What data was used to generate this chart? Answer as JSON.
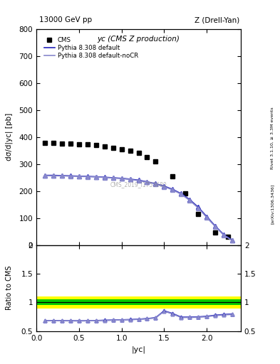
{
  "title_left": "13000 GeV pp",
  "title_right": "Z (Drell-Yan)",
  "plot_title": "yᴄ (CMS Z production)",
  "ylabel_main": "dσ/d|yᴄ| [pb]",
  "ylabel_ratio": "Ratio to CMS",
  "xlabel": "|yᴄ|",
  "right_label_top": "Rivet 3.1.10, ≥ 3.3M events",
  "right_label_bot": "[arXiv:1306.3436]",
  "watermark": "CMS_2019_I1753680",
  "cms_x": [
    0.1,
    0.2,
    0.3,
    0.4,
    0.5,
    0.6,
    0.7,
    0.8,
    0.9,
    1.0,
    1.1,
    1.2,
    1.3,
    1.4,
    1.6,
    1.75,
    1.9,
    2.1,
    2.25
  ],
  "cms_y": [
    378,
    377,
    376,
    375,
    374,
    372,
    369,
    364,
    359,
    354,
    348,
    340,
    325,
    310,
    255,
    190,
    115,
    45,
    30
  ],
  "pythia_default_x": [
    0.1,
    0.2,
    0.3,
    0.4,
    0.5,
    0.6,
    0.7,
    0.8,
    0.9,
    1.0,
    1.1,
    1.2,
    1.3,
    1.4,
    1.5,
    1.6,
    1.7,
    1.8,
    1.9,
    2.0,
    2.1,
    2.2,
    2.3
  ],
  "pythia_default_y": [
    258,
    258,
    257,
    256,
    255,
    254,
    253,
    251,
    249,
    247,
    244,
    240,
    234,
    227,
    218,
    206,
    190,
    168,
    140,
    105,
    70,
    38,
    18
  ],
  "pythia_nocr_x": [
    0.1,
    0.2,
    0.3,
    0.4,
    0.5,
    0.6,
    0.7,
    0.8,
    0.9,
    1.0,
    1.1,
    1.2,
    1.3,
    1.4,
    1.5,
    1.6,
    1.7,
    1.8,
    1.9,
    2.0,
    2.1,
    2.2,
    2.3
  ],
  "pythia_nocr_y": [
    257,
    256,
    256,
    255,
    254,
    253,
    252,
    250,
    248,
    246,
    243,
    238,
    233,
    226,
    216,
    204,
    188,
    165,
    137,
    102,
    68,
    36,
    16
  ],
  "ratio_default_x": [
    0.1,
    0.2,
    0.3,
    0.4,
    0.5,
    0.6,
    0.7,
    0.8,
    0.9,
    1.0,
    1.1,
    1.2,
    1.3,
    1.4,
    1.5,
    1.6,
    1.7,
    1.8,
    1.9,
    2.0,
    2.1,
    2.2,
    2.3
  ],
  "ratio_default_y": [
    0.682,
    0.685,
    0.683,
    0.682,
    0.681,
    0.682,
    0.686,
    0.691,
    0.695,
    0.699,
    0.703,
    0.71,
    0.72,
    0.736,
    0.855,
    0.808,
    0.745,
    0.747,
    0.75,
    0.76,
    0.779,
    0.791,
    0.8
  ],
  "ratio_nocr_x": [
    0.1,
    0.2,
    0.3,
    0.4,
    0.5,
    0.6,
    0.7,
    0.8,
    0.9,
    1.0,
    1.1,
    1.2,
    1.3,
    1.4,
    1.5,
    1.6,
    1.7,
    1.8,
    1.9,
    2.0,
    2.1,
    2.2,
    2.3
  ],
  "ratio_nocr_y": [
    0.68,
    0.683,
    0.681,
    0.68,
    0.679,
    0.68,
    0.684,
    0.688,
    0.692,
    0.697,
    0.7,
    0.707,
    0.717,
    0.732,
    0.848,
    0.8,
    0.738,
    0.74,
    0.743,
    0.753,
    0.772,
    0.783,
    0.792
  ],
  "ylim_main": [
    0,
    800
  ],
  "ylim_ratio": [
    0.5,
    2.0
  ],
  "xlim": [
    0,
    2.4
  ],
  "yticks_main": [
    0,
    100,
    200,
    300,
    400,
    500,
    600,
    700,
    800
  ],
  "yticks_ratio": [
    0.5,
    1.0,
    1.5,
    2.0
  ],
  "xticks": [
    0.0,
    0.5,
    1.0,
    1.5,
    2.0
  ],
  "cms_color": "black",
  "pythia_default_color": "#2222bb",
  "pythia_nocr_color": "#8888cc",
  "band_color_green": "#00cc00",
  "band_color_yellow": "#ffff00",
  "band_green_halfwidth": 0.05,
  "band_yellow_halfwidth": 0.1
}
